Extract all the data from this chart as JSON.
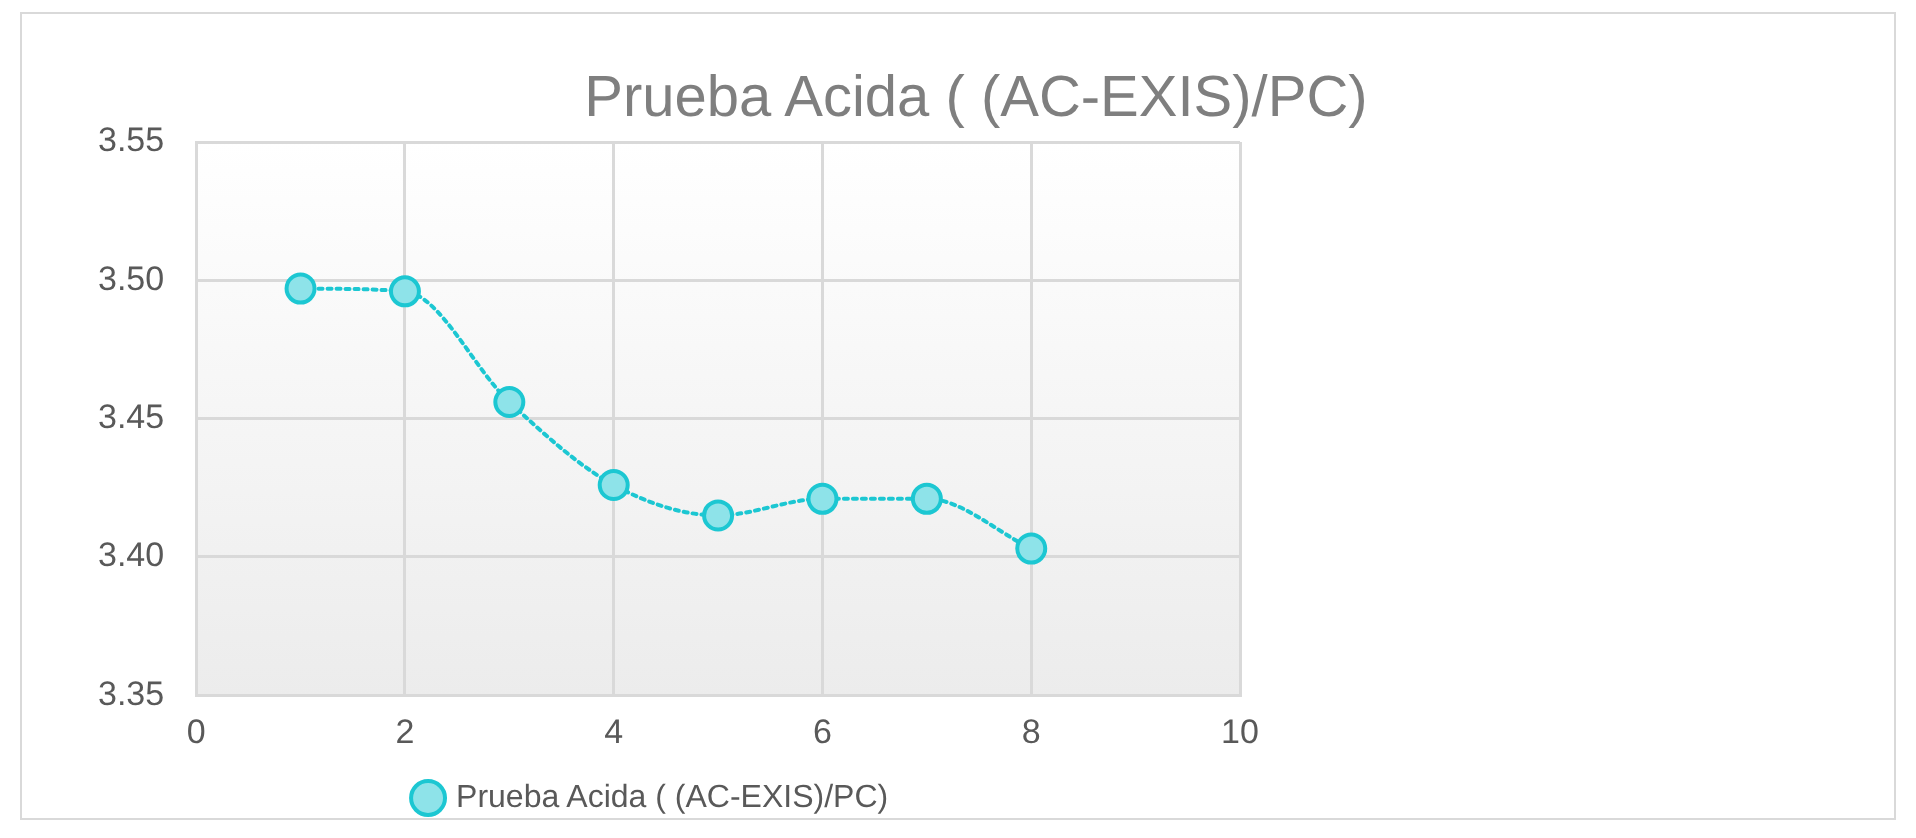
{
  "chart_data": {
    "type": "line",
    "title": "Prueba Acida ( (AC-EXIS)/PC)",
    "x": [
      1,
      2,
      3,
      4,
      5,
      6,
      7,
      8
    ],
    "series": [
      {
        "name": "Prueba Acida ( (AC-EXIS)/PC)",
        "color": "#1cc7d2",
        "values": [
          3.497,
          3.496,
          3.456,
          3.426,
          3.415,
          3.421,
          3.421,
          3.403
        ]
      }
    ],
    "xlim": [
      0,
      10
    ],
    "xticks": [
      0,
      2,
      4,
      6,
      8,
      10
    ],
    "ylim": [
      3.35,
      3.55
    ],
    "yticks": [
      3.35,
      {
        "value": 3.4,
        "label": "3.40"
      },
      3.45,
      {
        "value": 3.5,
        "label": "3.50"
      },
      3.55
    ],
    "grid": true,
    "legend": "bottom",
    "marker": "circle",
    "line_style": "dotted"
  }
}
